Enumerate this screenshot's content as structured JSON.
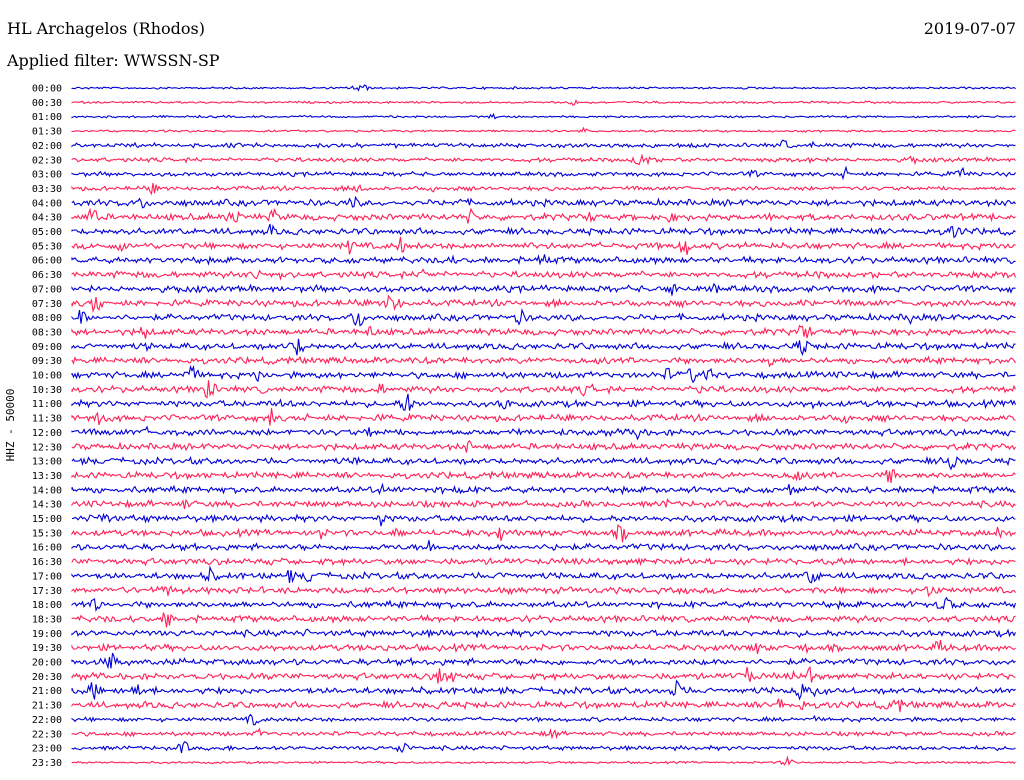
{
  "header": {
    "station": "HL Archagelos (Rhodos)",
    "date": "2019-07-07",
    "filter": "Applied filter: WWSSN-SP"
  },
  "chart_data": {
    "type": "line",
    "title": "HL Archagelos (Rhodos)",
    "ylabel": "HHZ - 50000",
    "colors": [
      "#0000d6",
      "#ff1f55"
    ],
    "rows": [
      "00:00",
      "00:30",
      "01:00",
      "01:30",
      "02:00",
      "02:30",
      "03:00",
      "03:30",
      "04:00",
      "04:30",
      "05:00",
      "05:30",
      "06:00",
      "06:30",
      "07:00",
      "07:30",
      "08:00",
      "08:30",
      "09:00",
      "09:30",
      "10:00",
      "10:30",
      "11:00",
      "11:30",
      "12:00",
      "12:30",
      "13:00",
      "13:30",
      "14:00",
      "14:30",
      "15:00",
      "15:30",
      "16:00",
      "16:30",
      "17:00",
      "17:30",
      "18:00",
      "18:30",
      "19:00",
      "19:30",
      "20:00",
      "20:30",
      "21:00",
      "21:30",
      "22:00",
      "22:30",
      "23:00",
      "23:30"
    ],
    "noise": [
      1,
      1,
      1,
      1,
      2,
      2,
      2,
      2,
      3,
      3,
      3,
      3,
      3,
      3,
      3,
      3,
      3,
      3,
      3,
      3,
      3,
      3,
      3,
      3,
      3,
      3,
      3,
      3,
      3,
      3,
      3,
      3,
      3,
      3,
      3,
      3,
      3,
      3,
      3,
      3,
      3,
      3,
      3,
      3,
      2,
      2,
      2,
      1
    ]
  }
}
